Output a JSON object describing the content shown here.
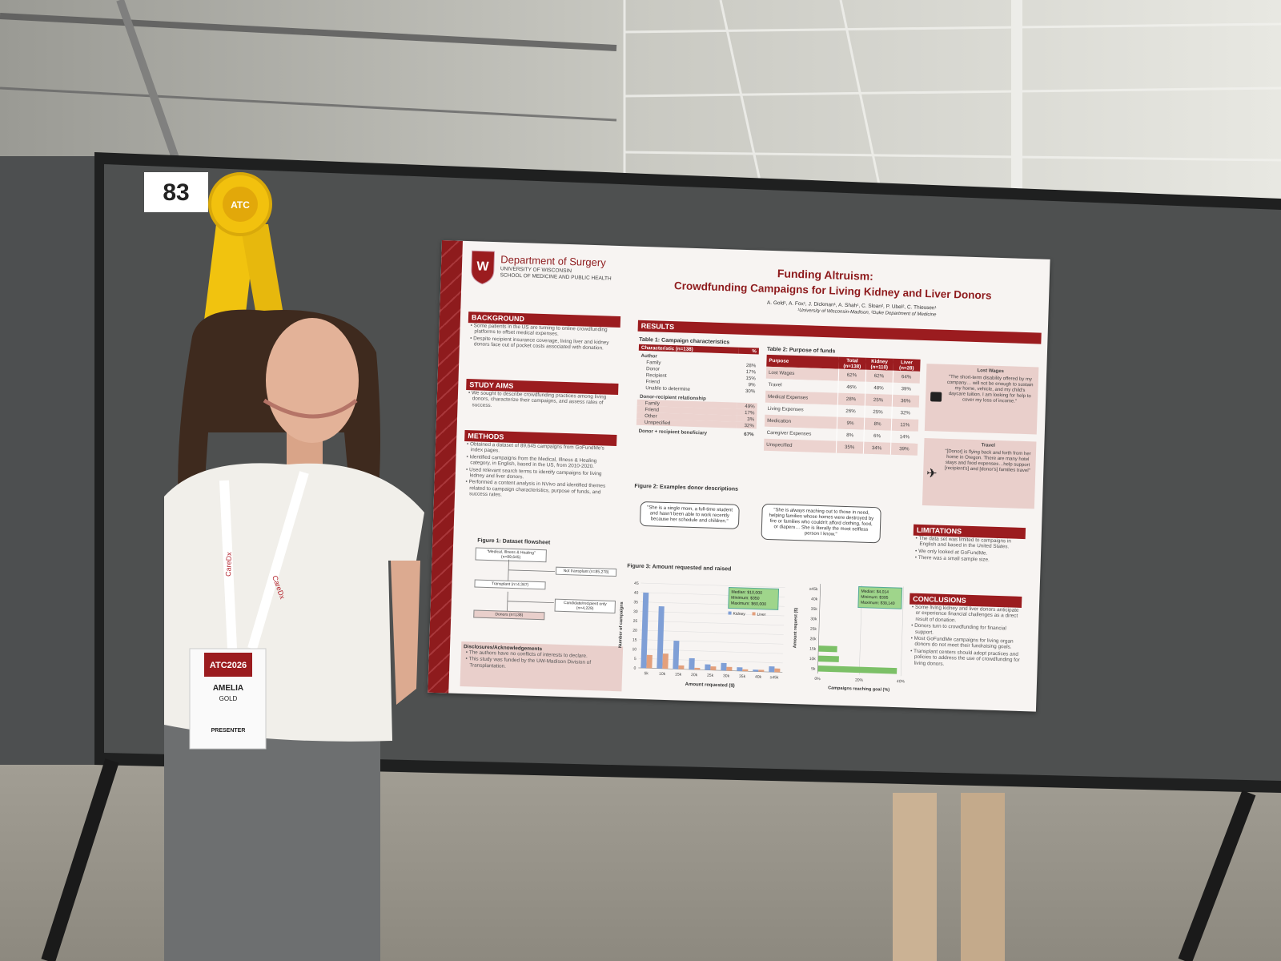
{
  "booth_number": "83",
  "ribbon": "ATC",
  "lanyard": "CareDx",
  "badge": {
    "event": "ATC2026",
    "first_name": "AMELIA",
    "last_name": "GOLD",
    "role": "PRESENTER"
  },
  "poster": {
    "department": "Department of Surgery",
    "university": "UNIVERSITY OF WISCONSIN",
    "school": "SCHOOL OF MEDICINE AND PUBLIC HEALTH",
    "title": "Funding Altruism:",
    "subtitle": "Crowdfunding Campaigns for Living Kidney and Liver Donors",
    "authors": "A. Gold¹, A. Fox¹, J. Dickman¹, A. Shah¹, C. Sloan², P. Ubel², C. Thiessen¹",
    "affiliations": "¹University of Wisconsin-Madison, ²Duke Department of Medicine",
    "background": {
      "heading": "BACKGROUND",
      "bullets": [
        "Some patients in the US are turning to online crowdfunding platforms to offset medical expenses.",
        "Despite recipient insurance coverage, living liver and kidney donors face out of pocket costs associated with donation."
      ]
    },
    "study_aims": {
      "heading": "STUDY AIMS",
      "bullets": [
        "We sought to describe crowdfunding practices among living donors, characterize their campaigns, and assess rates of success."
      ]
    },
    "methods": {
      "heading": "METHODS",
      "bullets": [
        "Obtained a dataset of 89,645 campaigns from GoFundMe's index pages.",
        "Identified campaigns from the Medical, Illness & Healing category, in English, based in the US, from 2010-2020.",
        "Used relevant search terms to identify campaigns for living kidney and liver donors.",
        "Performed a content analysis in NVivo and identified themes related to campaign characteristics, purpose of funds, and success rates."
      ]
    },
    "figure1": {
      "title": "Figure 1: Dataset flowsheet",
      "boxes": [
        "\"Medical, Illness & Healing\" (n=89,645)",
        "Not transplant (n=85,278)",
        "Transplant (n=4,367)",
        "Candidate/recipient only (n=4,229)",
        "Donors (n=138)"
      ]
    },
    "disclosures": {
      "heading": "Disclosures/Acknowledgements",
      "bullets": [
        "The authors have no conflicts of interests to declare.",
        "This study was funded by the UW-Madison Division of Transplantation."
      ]
    },
    "results_heading": "RESULTS",
    "table1": {
      "title": "Table 1: Campaign characteristics",
      "header": [
        "Characteristic (n=138)",
        "%"
      ],
      "groups": [
        {
          "label": "Author",
          "rows": [
            [
              "Family",
              "28%"
            ],
            [
              "Donor",
              "17%"
            ],
            [
              "Recipient",
              "15%"
            ],
            [
              "Friend",
              "9%"
            ],
            [
              "Unable to determine",
              "30%"
            ]
          ]
        },
        {
          "label": "Donor-recipient relationship",
          "rows": [
            [
              "Family",
              "49%"
            ],
            [
              "Friend",
              "17%"
            ],
            [
              "Other",
              "3%"
            ],
            [
              "Unspecified",
              "32%"
            ]
          ]
        }
      ],
      "footer": [
        "Donor + recipient beneficiary",
        "67%"
      ]
    },
    "table2": {
      "title": "Table 2: Purpose of funds",
      "header": [
        "Purpose",
        "Total (n=138)",
        "Kidney (n=110)",
        "Liver (n=28)"
      ],
      "rows": [
        [
          "Lost Wages",
          "62%",
          "62%",
          "64%"
        ],
        [
          "Travel",
          "46%",
          "48%",
          "39%"
        ],
        [
          "Medical Expenses",
          "28%",
          "25%",
          "36%"
        ],
        [
          "Living Expenses",
          "26%",
          "25%",
          "32%"
        ],
        [
          "Medication",
          "9%",
          "8%",
          "11%"
        ],
        [
          "Caregiver Expenses",
          "8%",
          "6%",
          "14%"
        ],
        [
          "Unspecified",
          "35%",
          "34%",
          "39%"
        ]
      ]
    },
    "quotes": [
      {
        "title": "Lost Wages",
        "text": "\"The short-term disability offered by my company… will not be enough to sustain my home, vehicle, and my child's daycare tuition. I am looking for help to cover my loss of income.\""
      },
      {
        "title": "Travel",
        "text": "\"[Donor] is flying back and forth from her home in Oregon. There are many hotel stays and food expenses…help support [recipient's] and [donor's] families travel\""
      }
    ],
    "figure2": {
      "title": "Figure 2: Examples donor descriptions",
      "quotes": [
        "\"She is a single mom, a full-time student and hasn't been able to work recently because her schedule and children.\"",
        "\"She is always reaching out to those in need, helping families whose homes were destroyed by fire or families who couldn't afford clothing, food, or diapers… She is literally the most selfless person I know.\""
      ]
    },
    "figure3_title": "Figure 3: Amount requested and raised",
    "limitations": {
      "heading": "LIMITATIONS",
      "bullets": [
        "The data set was limited to campaigns in English and based in the United States.",
        "We only looked at GoFundMe.",
        "There was a small sample size."
      ]
    },
    "conclusions": {
      "heading": "CONCLUSIONS",
      "bullets": [
        "Some living kidney and liver donors anticipate or experience financial challenges as a direct result of donation.",
        "Donors turn to crowdfunding for financial support.",
        "Most GoFundMe campaigns for living organ donors do not meet their fundraising goals.",
        "Transplant centers should adopt practices and policies to address the use of crowdfunding for living donors."
      ]
    }
  },
  "chart_data": [
    {
      "type": "bar",
      "x_label": "Amount requested ($)",
      "y_label": "Number of campaigns",
      "categories": [
        "5k",
        "10k",
        "15k",
        "20k",
        "25k",
        "30k",
        "35k",
        "40k",
        "≥45k"
      ],
      "series": [
        {
          "name": "Kidney",
          "color": "#7f9fd6",
          "values": [
            40,
            33,
            15,
            6,
            3,
            4,
            2,
            1,
            3
          ]
        },
        {
          "name": "Liver",
          "color": "#e3a07c",
          "values": [
            7,
            8,
            2,
            1,
            2,
            2,
            1,
            1,
            2
          ]
        }
      ],
      "ylim": [
        0,
        45
      ],
      "yticks": [
        0,
        5,
        10,
        15,
        20,
        25,
        30,
        35,
        40,
        45
      ],
      "annotations": [
        "Median: $10,000",
        "Minimum: $350",
        "Maximum: $60,000"
      ]
    },
    {
      "type": "hbar",
      "x_label": "Campaigns reaching goal (%)",
      "y_label": "Amount request ($)",
      "categories": [
        "5k",
        "10k",
        "15k",
        "20k",
        "25k",
        "30k",
        "35k",
        "40k",
        "≥45k"
      ],
      "values": [
        38,
        10,
        9,
        0,
        0,
        0,
        0,
        0,
        0
      ],
      "color": "#7cc067",
      "xlim": [
        0,
        40
      ],
      "xticks": [
        {
          "value": 0,
          "label": "0%"
        },
        {
          "value": 20,
          "label": "20%"
        },
        {
          "value": 40,
          "label": "40%"
        }
      ],
      "annotations": [
        "Median: $4,014",
        "Minimum: $395",
        "Maximum: $38,140"
      ]
    }
  ]
}
